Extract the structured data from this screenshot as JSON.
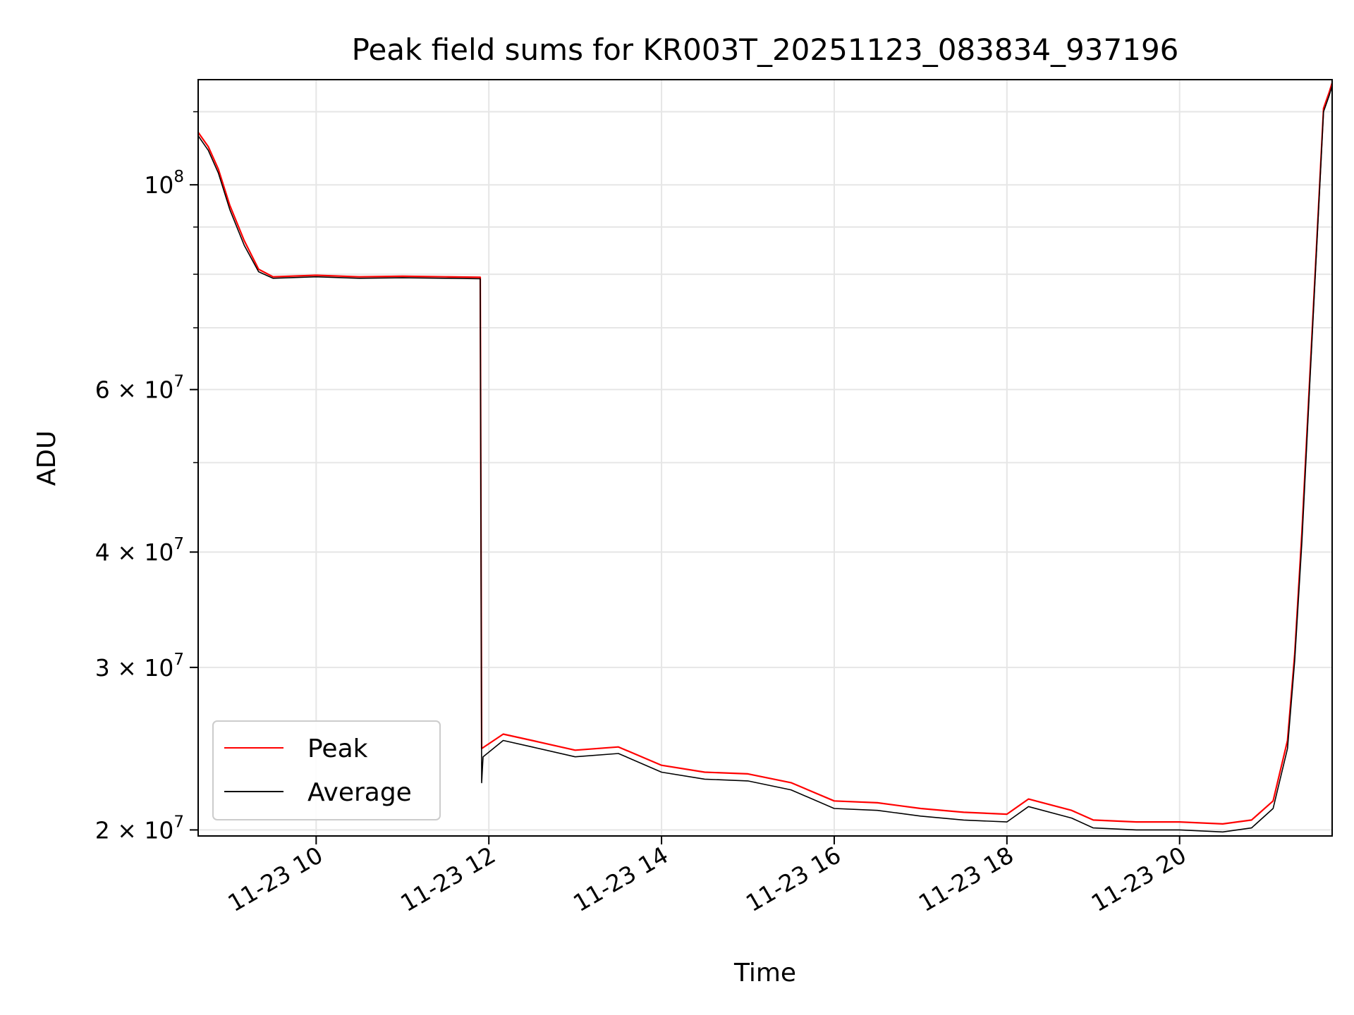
{
  "chart_data": {
    "type": "line",
    "title": "Peak field sums for KR003T_20251123_083834_937196",
    "xlabel": "Time",
    "ylabel": "ADU",
    "yscale": "log",
    "xlim": [
      "11-23 08:38",
      "11-23 21:46"
    ],
    "ylim": [
      19700000,
      130000000
    ],
    "x_ticks": [
      {
        "value": "11-23 10:00",
        "label": "11-23 10"
      },
      {
        "value": "11-23 12:00",
        "label": "11-23 12"
      },
      {
        "value": "11-23 14:00",
        "label": "11-23 14"
      },
      {
        "value": "11-23 16:00",
        "label": "11-23 16"
      },
      {
        "value": "11-23 18:00",
        "label": "11-23 18"
      },
      {
        "value": "11-23 20:00",
        "label": "11-23 20"
      }
    ],
    "y_ticks": [
      {
        "value": 100000000,
        "mantissa": "10",
        "exponent": "8"
      },
      {
        "value": 60000000,
        "mantissa": "6 × 10",
        "exponent": "7"
      },
      {
        "value": 40000000,
        "mantissa": "4 × 10",
        "exponent": "7"
      },
      {
        "value": 30000000,
        "mantissa": "3 × 10",
        "exponent": "7"
      },
      {
        "value": 20000000,
        "mantissa": "2 × 10",
        "exponent": "7"
      }
    ],
    "grid": true,
    "legend_position": "lower-left",
    "series": [
      {
        "name": "Peak",
        "color": "#ff0000",
        "points": [
          [
            "11-23 08:38",
            114000000
          ],
          [
            "11-23 08:45",
            110000000
          ],
          [
            "11-23 08:52",
            104000000
          ],
          [
            "11-23 09:00",
            95000000
          ],
          [
            "11-23 09:10",
            87000000
          ],
          [
            "11-23 09:20",
            81000000
          ],
          [
            "11-23 09:30",
            79500000
          ],
          [
            "11-23 10:00",
            79800000
          ],
          [
            "11-23 10:30",
            79500000
          ],
          [
            "11-23 11:00",
            79600000
          ],
          [
            "11-23 11:30",
            79500000
          ],
          [
            "11-23 11:54",
            79400000
          ],
          [
            "11-23 11:55",
            24500000
          ],
          [
            "11-23 12:10",
            25400000
          ],
          [
            "11-23 12:30",
            25000000
          ],
          [
            "11-23 13:00",
            24400000
          ],
          [
            "11-23 13:30",
            24600000
          ],
          [
            "11-23 14:00",
            23500000
          ],
          [
            "11-23 14:30",
            23100000
          ],
          [
            "11-23 15:00",
            23000000
          ],
          [
            "11-23 15:30",
            22500000
          ],
          [
            "11-23 16:00",
            21500000
          ],
          [
            "11-23 16:30",
            21400000
          ],
          [
            "11-23 17:00",
            21100000
          ],
          [
            "11-23 17:30",
            20900000
          ],
          [
            "11-23 18:00",
            20800000
          ],
          [
            "11-23 18:15",
            21600000
          ],
          [
            "11-23 18:45",
            21000000
          ],
          [
            "11-23 19:00",
            20500000
          ],
          [
            "11-23 19:30",
            20400000
          ],
          [
            "11-23 20:00",
            20400000
          ],
          [
            "11-23 20:30",
            20300000
          ],
          [
            "11-23 20:50",
            20500000
          ],
          [
            "11-23 21:05",
            21500000
          ],
          [
            "11-23 21:15",
            25000000
          ],
          [
            "11-23 21:20",
            31000000
          ],
          [
            "11-23 21:25",
            42000000
          ],
          [
            "11-23 21:30",
            60000000
          ],
          [
            "11-23 21:35",
            85000000
          ],
          [
            "11-23 21:38",
            105000000
          ],
          [
            "11-23 21:40",
            121000000
          ],
          [
            "11-23 21:44",
            126000000
          ],
          [
            "11-23 21:46",
            129000000
          ]
        ]
      },
      {
        "name": "Average",
        "color": "#000000",
        "points": [
          [
            "11-23 08:38",
            113000000
          ],
          [
            "11-23 08:45",
            109000000
          ],
          [
            "11-23 08:52",
            103000000
          ],
          [
            "11-23 09:00",
            94000000
          ],
          [
            "11-23 09:10",
            86000000
          ],
          [
            "11-23 09:20",
            80500000
          ],
          [
            "11-23 09:30",
            79200000
          ],
          [
            "11-23 10:00",
            79500000
          ],
          [
            "11-23 10:30",
            79200000
          ],
          [
            "11-23 11:00",
            79300000
          ],
          [
            "11-23 11:30",
            79200000
          ],
          [
            "11-23 11:54",
            79100000
          ],
          [
            "11-23 11:55",
            22500000
          ],
          [
            "11-23 11:56",
            24000000
          ],
          [
            "11-23 12:10",
            25000000
          ],
          [
            "11-23 12:30",
            24600000
          ],
          [
            "11-23 13:00",
            24000000
          ],
          [
            "11-23 13:30",
            24200000
          ],
          [
            "11-23 14:00",
            23100000
          ],
          [
            "11-23 14:30",
            22700000
          ],
          [
            "11-23 15:00",
            22600000
          ],
          [
            "11-23 15:30",
            22100000
          ],
          [
            "11-23 16:00",
            21100000
          ],
          [
            "11-23 16:30",
            21000000
          ],
          [
            "11-23 17:00",
            20700000
          ],
          [
            "11-23 17:30",
            20500000
          ],
          [
            "11-23 18:00",
            20400000
          ],
          [
            "11-23 18:15",
            21200000
          ],
          [
            "11-23 18:45",
            20600000
          ],
          [
            "11-23 19:00",
            20100000
          ],
          [
            "11-23 19:30",
            20000000
          ],
          [
            "11-23 20:00",
            20000000
          ],
          [
            "11-23 20:30",
            19900000
          ],
          [
            "11-23 20:50",
            20100000
          ],
          [
            "11-23 21:05",
            21100000
          ],
          [
            "11-23 21:15",
            24500000
          ],
          [
            "11-23 21:20",
            30500000
          ],
          [
            "11-23 21:25",
            41000000
          ],
          [
            "11-23 21:30",
            59000000
          ],
          [
            "11-23 21:35",
            84000000
          ],
          [
            "11-23 21:38",
            104000000
          ],
          [
            "11-23 21:40",
            120000000
          ],
          [
            "11-23 21:44",
            125000000
          ],
          [
            "11-23 21:46",
            128000000
          ]
        ]
      }
    ]
  }
}
